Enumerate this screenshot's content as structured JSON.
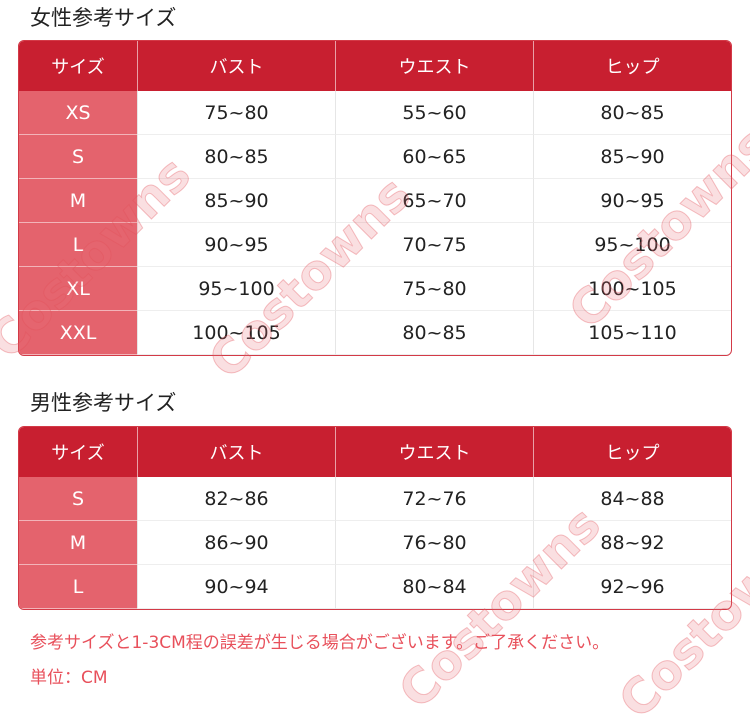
{
  "women": {
    "title": "女性参考サイズ",
    "headers": [
      "サイズ",
      "バスト",
      "ウエスト",
      "ヒップ"
    ],
    "rows": [
      [
        "XS",
        "75~80",
        "55~60",
        "80~85"
      ],
      [
        "S",
        "80~85",
        "60~65",
        "85~90"
      ],
      [
        "M",
        "85~90",
        "65~70",
        "90~95"
      ],
      [
        "L",
        "90~95",
        "70~75",
        "95~100"
      ],
      [
        "XL",
        "95~100",
        "75~80",
        "100~105"
      ],
      [
        "XXL",
        "100~105",
        "80~85",
        "105~110"
      ]
    ]
  },
  "men": {
    "title": "男性参考サイズ",
    "headers": [
      "サイズ",
      "バスト",
      "ウエスト",
      "ヒップ"
    ],
    "rows": [
      [
        "S",
        "82~86",
        "72~76",
        "84~88"
      ],
      [
        "M",
        "86~90",
        "76~80",
        "88~92"
      ],
      [
        "L",
        "90~94",
        "80~84",
        "92~96"
      ]
    ]
  },
  "notes": {
    "disclaimer": "参考サイズと1-3CM程の誤差が生じる場合がございます。ご了承ください。",
    "unit": "単位：CM"
  },
  "watermark": "Costowns",
  "colors": {
    "header": "#c81f30",
    "size_column": "#e4636d",
    "note_text": "#e8505b"
  }
}
